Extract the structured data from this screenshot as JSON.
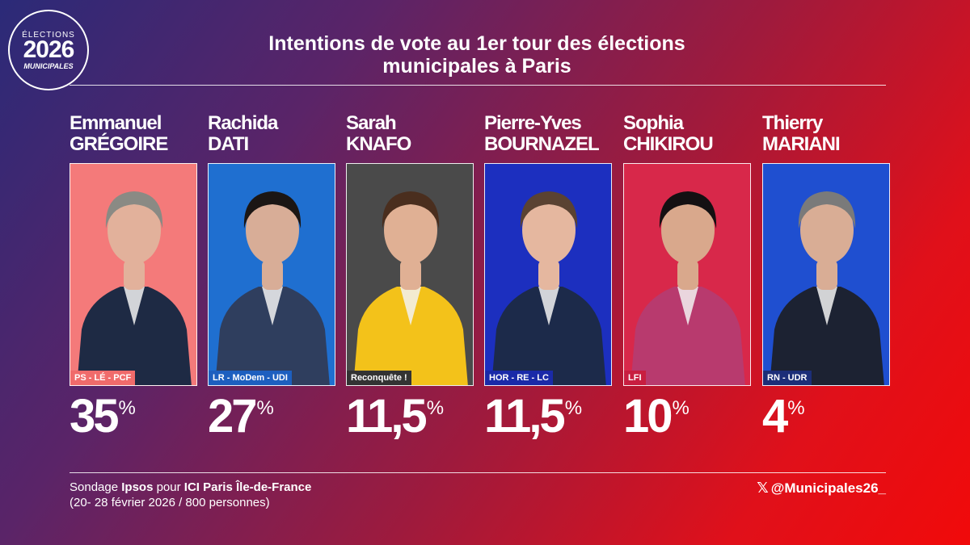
{
  "logo": {
    "line1": "ÉLECTIONS",
    "line2": "2026",
    "line3": "MUNICIPALES"
  },
  "header": {
    "title_line1": "Intentions de vote au 1er tour des élections",
    "title_line2": "municipales à Paris"
  },
  "chart_data": {
    "type": "bar",
    "title": "Intentions de vote au 1er tour des élections municipales à Paris",
    "unit": "%",
    "categories": [
      "Emmanuel GRÉGOIRE",
      "Rachida DATI",
      "Sarah KNAFO",
      "Pierre-Yves BOURNAZEL",
      "Sophia CHIKIROU",
      "Thierry MARIANI"
    ],
    "values": [
      35,
      27,
      11.5,
      11.5,
      10,
      4
    ]
  },
  "candidates": [
    {
      "first": "Emmanuel",
      "last": "GRÉGOIRE",
      "party": "PS - LÉ - PCF",
      "value": "35",
      "unit": "%",
      "photo_bg": "#f47a7a",
      "party_bg": "#f06b6b",
      "suit": "#1e2a44",
      "hair": "#8a8a84",
      "skin": "#e2b19b"
    },
    {
      "first": "Rachida",
      "last": "DATI",
      "party": "LR - MoDem - UDI",
      "value": "27",
      "unit": "%",
      "photo_bg": "#1f6fd0",
      "party_bg": "#1d5fbf",
      "suit": "#2f3e5e",
      "hair": "#1b1614",
      "skin": "#d8ad97"
    },
    {
      "first": "Sarah",
      "last": "KNAFO",
      "party": "Reconquête !",
      "value": "11,5",
      "unit": "%",
      "photo_bg": "#4a4a4a",
      "party_bg": "#333333",
      "suit": "#f3c21a",
      "hair": "#4a2e1e",
      "skin": "#e0b094"
    },
    {
      "first": "Pierre-Yves",
      "last": "BOURNAZEL",
      "party": "HOR - RE - LC",
      "value": "11,5",
      "unit": "%",
      "photo_bg": "#1c2fbf",
      "party_bg": "#1a2aa8",
      "suit": "#1c2a4a",
      "hair": "#5a4232",
      "skin": "#e5b79f"
    },
    {
      "first": "Sophia",
      "last": "CHIKIROU",
      "party": "LFI",
      "value": "10",
      "unit": "%",
      "photo_bg": "#d8284a",
      "party_bg": "#c81e40",
      "suit": "#b83a6e",
      "hair": "#141012",
      "skin": "#d9a88c"
    },
    {
      "first": "Thierry",
      "last": "MARIANI",
      "party": "RN - UDR",
      "value": "4",
      "unit": "%",
      "photo_bg": "#1f4fd0",
      "party_bg": "#1c2e78",
      "suit": "#1c2232",
      "hair": "#7a7a7a",
      "skin": "#d9ad95"
    }
  ],
  "footer": {
    "source_pre": "Sondage ",
    "source_org": "Ipsos",
    "source_mid": " pour ",
    "source_media": "ICI Paris Île-de-France",
    "source_line2": "(20- 28 février 2026 / 800 personnes)",
    "handle_icon": "x-logo-icon",
    "handle": "@Municipales26_"
  }
}
